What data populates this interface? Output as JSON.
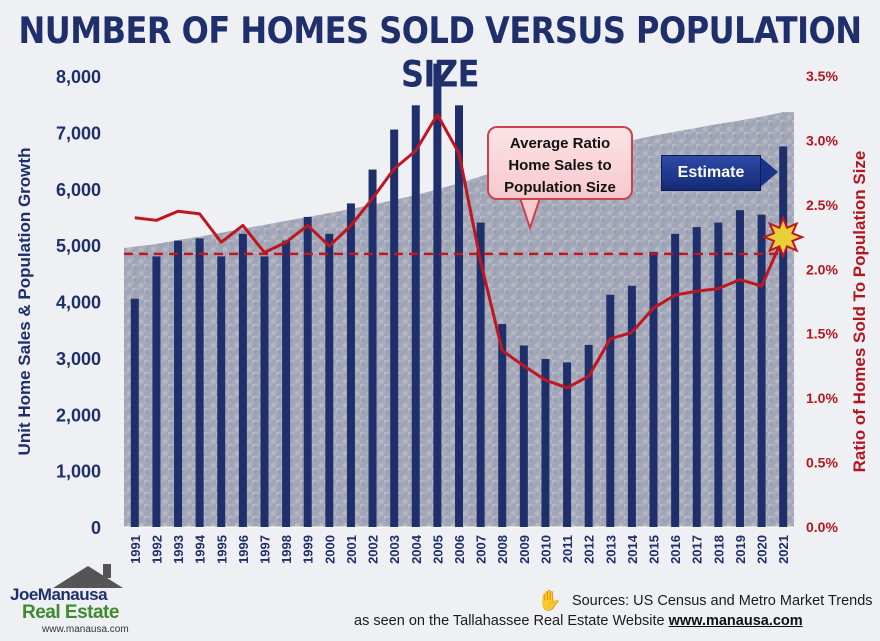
{
  "title": "NUMBER OF HOMES SOLD VERSUS POPULATION SIZE",
  "callout": [
    "Average Ratio",
    "Home Sales to",
    "Population Size"
  ],
  "estimate_label": "Estimate",
  "sources_text": "Sources: US Census and Metro Market Trends",
  "website_text": "as seen on the Tallahassee Real Estate Website",
  "website_url": "www.manausa.com",
  "logo": {
    "name": "JoeManausa",
    "sub": "Real Estate",
    "url": "www.manausa.com"
  },
  "colors": {
    "bars": "#1f2f6b",
    "ratio_line": "#c0161f",
    "title": "#1f2f6b",
    "right_axis": "#b3161d"
  },
  "chart_data": {
    "type": "bar",
    "title": "NUMBER OF HOMES SOLD VERSUS POPULATION SIZE",
    "categories": [
      "1991",
      "1992",
      "1993",
      "1994",
      "1995",
      "1996",
      "1997",
      "1998",
      "1999",
      "2000",
      "2001",
      "2002",
      "2003",
      "2004",
      "2005",
      "2006",
      "2007",
      "2008",
      "2009",
      "2010",
      "2011",
      "2012",
      "2013",
      "2014",
      "2015",
      "2016",
      "2017",
      "2018",
      "2019",
      "2020",
      "2021"
    ],
    "ylabel": "Unit Home Sales & Population Growth",
    "y2label": "Ratio of Homes Sold To Population Size",
    "ylim": [
      0,
      8000
    ],
    "y2lim": [
      0,
      3.5
    ],
    "y_ticks": [
      "0",
      "1,000",
      "2,000",
      "3,000",
      "4,000",
      "5,000",
      "6,000",
      "7,000",
      "8,000"
    ],
    "y2_ticks": [
      "0.0%",
      "0.5%",
      "1.0%",
      "1.5%",
      "2.0%",
      "2.5%",
      "3.0%",
      "3.5%"
    ],
    "series": [
      {
        "name": "Unit Home Sales",
        "type": "bar",
        "values": [
          4050,
          4800,
          5080,
          5120,
          4800,
          5200,
          4800,
          5080,
          5500,
          5200,
          5740,
          6340,
          7050,
          7480,
          8220,
          7480,
          5400,
          3600,
          3220,
          2980,
          2920,
          3230,
          4120,
          4280,
          4880,
          5200,
          5320,
          5400,
          5620,
          5540,
          6750
        ]
      },
      {
        "name": "Ratio of Homes Sold To Population Size",
        "type": "line",
        "axis": "right",
        "values": [
          2.4,
          2.38,
          2.45,
          2.43,
          2.21,
          2.34,
          2.13,
          2.21,
          2.34,
          2.18,
          2.34,
          2.55,
          2.78,
          2.92,
          3.2,
          2.9,
          2.06,
          1.37,
          1.25,
          1.14,
          1.08,
          1.17,
          1.46,
          1.51,
          1.7,
          1.8,
          1.83,
          1.85,
          1.92,
          1.87,
          2.25
        ]
      },
      {
        "name": "Population Growth",
        "type": "area",
        "values": [
          4950,
          5020,
          5090,
          5150,
          5220,
          5290,
          5360,
          5430,
          5500,
          5570,
          5640,
          5720,
          5800,
          5890,
          5990,
          6100,
          6220,
          6340,
          6450,
          6540,
          6620,
          6700,
          6780,
          6860,
          6940,
          7010,
          7080,
          7150,
          7210,
          7280,
          7360
        ]
      }
    ],
    "average_ratio": 2.12,
    "highlight": {
      "category": "2021",
      "ratio": 2.25
    }
  }
}
